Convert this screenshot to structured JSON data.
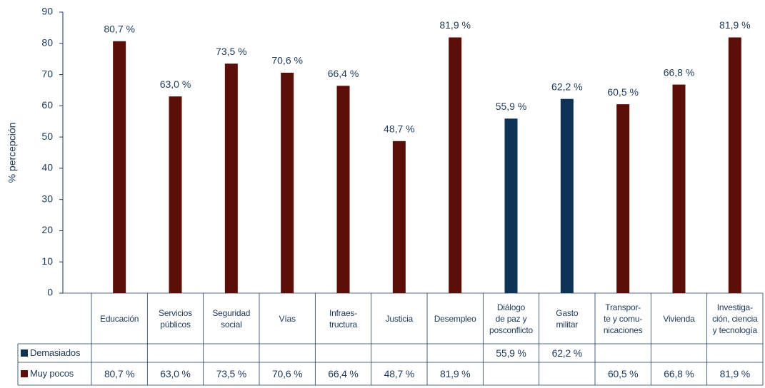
{
  "chart_data": {
    "type": "bar",
    "y_label": "% percepción",
    "categories": [
      "Educación",
      "Servicios\npúblicos",
      "Seguridad\nsocial",
      "Vías",
      "Infraes-\ntructura",
      "Justicia",
      "Desempleo",
      "Diálogo\nde paz y\nposconflicto",
      "Gasto\nmilitar",
      "Transpor-\nte y comu-\nnicaciones",
      "Vivienda",
      "Investiga-\nción, ciencia\ny tecnología"
    ],
    "series": [
      {
        "name": "Demasiados",
        "color": "#0e3356",
        "values": [
          null,
          null,
          null,
          null,
          null,
          null,
          null,
          55.9,
          62.2,
          null,
          null,
          null
        ],
        "value_labels": [
          null,
          null,
          null,
          null,
          null,
          null,
          null,
          "55,9 %",
          "62,2 %",
          null,
          null,
          null
        ]
      },
      {
        "name": "Muy pocos",
        "color": "#5c0f08",
        "values": [
          80.7,
          63.0,
          73.5,
          70.6,
          66.4,
          48.7,
          81.9,
          null,
          null,
          60.5,
          66.8,
          81.9
        ],
        "value_labels": [
          "80,7 %",
          "63,0 %",
          "73,5 %",
          "70,6 %",
          "66,4 %",
          "48,7 %",
          "81,9 %",
          null,
          null,
          "60,5 %",
          "66,8 %",
          "81,9 %"
        ]
      }
    ],
    "ylim": [
      0,
      90
    ],
    "yticks": [
      0,
      10,
      20,
      30,
      40,
      50,
      60,
      70,
      80,
      90
    ],
    "grid": false
  }
}
